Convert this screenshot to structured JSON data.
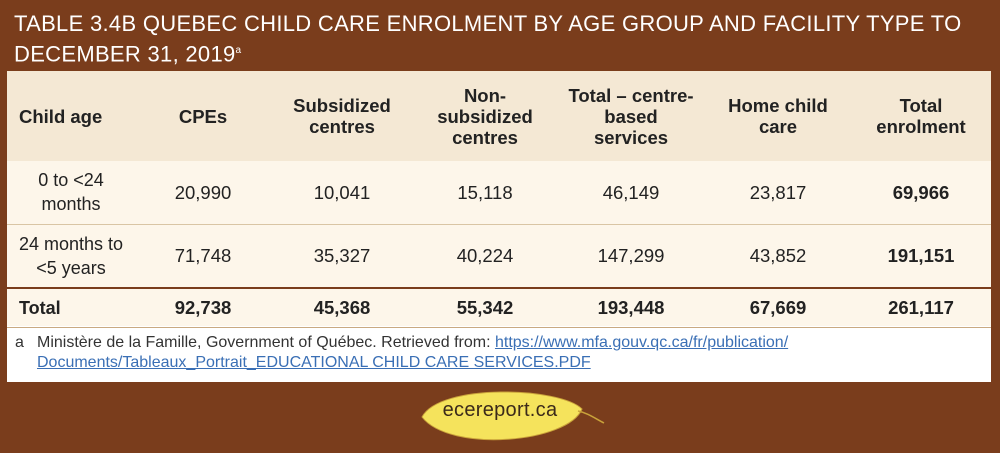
{
  "title": {
    "text": "TABLE 3.4B QUEBEC CHILD CARE ENROLMENT BY AGE GROUP AND FACILITY TYPE TO DECEMBER 31, 2019",
    "footnote_marker": "a"
  },
  "table": {
    "headers": {
      "col0": "Child age",
      "col1": "CPEs",
      "col2": "Subsidized centres",
      "col3": "Non-subsidized centres",
      "col4": "Total – centre-based services",
      "col5": "Home child care",
      "col6": "Total enrolment"
    },
    "rows": [
      {
        "age": "0 to <24 months",
        "cpes": "20,990",
        "subsidized": "10,041",
        "non_subsidized": "15,118",
        "total_centre": "46,149",
        "home": "23,817",
        "total": "69,966"
      },
      {
        "age": "24 months to <5 years",
        "cpes": "71,748",
        "subsidized": "35,327",
        "non_subsidized": "40,224",
        "total_centre": "147,299",
        "home": "43,852",
        "total": "191,151"
      }
    ],
    "total_row": {
      "label": "Total",
      "cpes": "92,738",
      "subsidized": "45,368",
      "non_subsidized": "55,342",
      "total_centre": "193,448",
      "home": "67,669",
      "total": "261,117"
    }
  },
  "footnote": {
    "marker": "a",
    "text": "Ministère de la Famille, Government of Québec. Retrieved from:",
    "link_part1": "https://www.mfa.gouv.qc.ca/fr/publication/",
    "link_part2": "Documents/Tableaux_Portrait_EDUCATIONAL CHILD CARE SERVICES.PDF"
  },
  "logo": {
    "text": "ecereport.ca",
    "leaf_color": "#f5e35c"
  },
  "colors": {
    "background": "#7a3d1c",
    "header_bg": "#f4e8d4",
    "row_bg": "#fdf6ea",
    "link": "#3a6fb5"
  }
}
